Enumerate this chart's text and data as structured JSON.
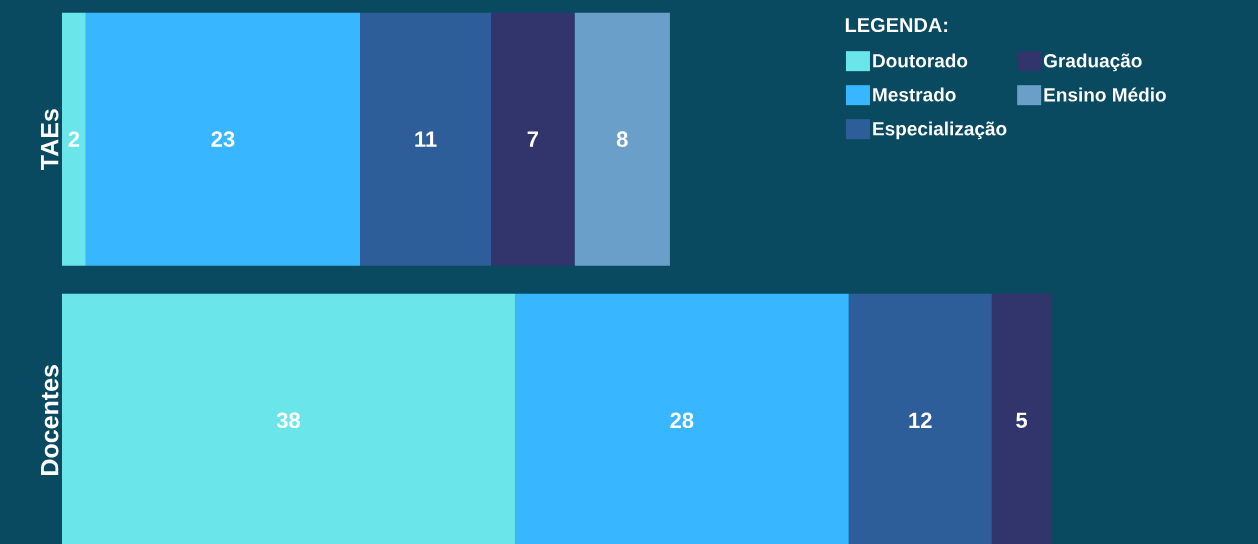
{
  "chart_data": {
    "type": "bar",
    "orientation": "horizontal",
    "stacked": true,
    "data_labels": true,
    "categories": [
      "TAEs",
      "Docentes"
    ],
    "legend_title": "LEGENDA:",
    "legend": "top right",
    "tick_labels": "y",
    "xlim": [
      0,
      100
    ],
    "series": [
      {
        "name": "Doutorado",
        "color": "#6ae6ea",
        "values": [
          2,
          38
        ]
      },
      {
        "name": "Mestrado",
        "color": "#38b6ff",
        "values": [
          23,
          28
        ]
      },
      {
        "name": "Especialização",
        "color": "#2e5e99",
        "values": [
          11,
          12
        ]
      },
      {
        "name": "Graduação",
        "color": "#31356b",
        "values": [
          7,
          5
        ]
      },
      {
        "name": "Ensino Médio",
        "color": "#6a9fca",
        "values": [
          8,
          null
        ]
      }
    ]
  }
}
